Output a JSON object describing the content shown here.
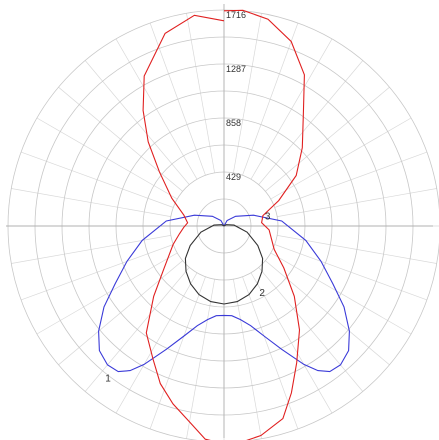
{
  "chart_data": {
    "type": "polar-line",
    "angle_unit": "deg",
    "angle_zero": "down",
    "rmax": 1716,
    "ticks": [
      {
        "value": 429,
        "label": "429"
      },
      {
        "value": 858,
        "label": "858"
      },
      {
        "value": 1287,
        "label": "1287"
      },
      {
        "value": 1716,
        "label": "1716"
      }
    ],
    "grid": true,
    "series": [
      {
        "name": "1",
        "color": "#3a3ad8",
        "points": [
          [
            -180,
            0
          ],
          [
            -150,
            50
          ],
          [
            -130,
            120
          ],
          [
            -110,
            250
          ],
          [
            -95,
            460
          ],
          [
            -80,
            660
          ],
          [
            -70,
            820
          ],
          [
            -62,
            980
          ],
          [
            -56,
            1150
          ],
          [
            -50,
            1300
          ],
          [
            -45,
            1400
          ],
          [
            -40,
            1440
          ],
          [
            -36,
            1430
          ],
          [
            -33,
            1370
          ],
          [
            -30,
            1270
          ],
          [
            -25,
            1080
          ],
          [
            -20,
            930
          ],
          [
            -15,
            820
          ],
          [
            -10,
            755
          ],
          [
            -5,
            715
          ],
          [
            0,
            710
          ],
          [
            5,
            715
          ],
          [
            10,
            755
          ],
          [
            15,
            820
          ],
          [
            20,
            930
          ],
          [
            25,
            1080
          ],
          [
            30,
            1270
          ],
          [
            33,
            1370
          ],
          [
            36,
            1430
          ],
          [
            40,
            1440
          ],
          [
            45,
            1400
          ],
          [
            50,
            1300
          ],
          [
            56,
            1150
          ],
          [
            62,
            980
          ],
          [
            70,
            820
          ],
          [
            80,
            660
          ],
          [
            95,
            460
          ],
          [
            110,
            250
          ],
          [
            130,
            120
          ],
          [
            150,
            50
          ],
          [
            180,
            0
          ]
        ]
      },
      {
        "name": "2",
        "color": "#333333",
        "points": [
          [
            -180,
            0
          ],
          [
            -120,
            20
          ],
          [
            -95,
            80
          ],
          [
            -75,
            190
          ],
          [
            -60,
            310
          ],
          [
            -50,
            400
          ],
          [
            -40,
            470
          ],
          [
            -30,
            530
          ],
          [
            -20,
            580
          ],
          [
            -10,
            610
          ],
          [
            0,
            620
          ],
          [
            10,
            610
          ],
          [
            20,
            580
          ],
          [
            30,
            530
          ],
          [
            40,
            470
          ],
          [
            50,
            400
          ],
          [
            60,
            310
          ],
          [
            75,
            190
          ],
          [
            95,
            80
          ],
          [
            120,
            20
          ],
          [
            180,
            0
          ]
        ]
      },
      {
        "name": "3",
        "color": "#e02020",
        "points": [
          [
            -180,
            1630
          ],
          [
            -172,
            1690
          ],
          [
            -163,
            1600
          ],
          [
            -152,
            1350
          ],
          [
            -145,
            1120
          ],
          [
            -138,
            900
          ],
          [
            -130,
            670
          ],
          [
            -118,
            470
          ],
          [
            -105,
            330
          ],
          [
            -95,
            290
          ],
          [
            -88,
            320
          ],
          [
            -80,
            360
          ],
          [
            -70,
            430
          ],
          [
            -55,
            580
          ],
          [
            -45,
            790
          ],
          [
            -36,
            1050
          ],
          [
            -28,
            1200
          ],
          [
            -22,
            1350
          ],
          [
            -16,
            1470
          ],
          [
            -10,
            1580
          ],
          [
            -5,
            1700
          ],
          [
            0,
            1730
          ],
          [
            5,
            1720
          ],
          [
            10,
            1690
          ],
          [
            17,
            1600
          ],
          [
            22,
            1430
          ],
          [
            28,
            1230
          ],
          [
            36,
            1020
          ],
          [
            45,
            790
          ],
          [
            55,
            580
          ],
          [
            65,
            440
          ],
          [
            75,
            390
          ],
          [
            85,
            360
          ],
          [
            95,
            300
          ],
          [
            105,
            320
          ],
          [
            115,
            480
          ],
          [
            125,
            700
          ],
          [
            135,
            880
          ],
          [
            145,
            1100
          ],
          [
            152,
            1360
          ],
          [
            160,
            1560
          ],
          [
            168,
            1680
          ],
          [
            175,
            1720
          ],
          [
            180,
            1710
          ]
        ]
      }
    ]
  }
}
